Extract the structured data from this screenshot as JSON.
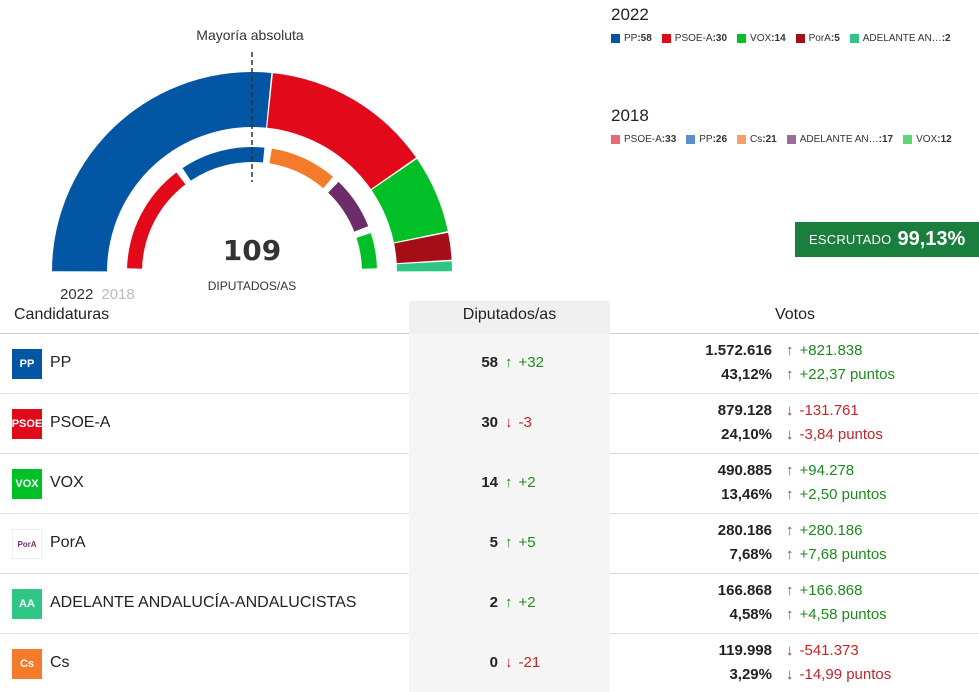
{
  "chart_data": {
    "type": "hemicycle",
    "threshold_label": "Mayoría absoluta",
    "total_seats": "109",
    "total_label": "DIPUTADOS/AS",
    "outer_series": {
      "year": "2022",
      "parties": [
        {
          "name": "PP",
          "seats": 58,
          "color": "#0256a3"
        },
        {
          "name": "PSOE-A",
          "seats": 30,
          "color": "#e20a1a"
        },
        {
          "name": "VOX",
          "seats": 14,
          "color": "#00bf27"
        },
        {
          "name": "PorA",
          "seats": 5,
          "color": "#a50d17"
        },
        {
          "name": "ADELANTE AN…",
          "seats": 2,
          "color": "#2fc685"
        }
      ]
    },
    "inner_series": {
      "year": "2018",
      "parties": [
        {
          "name": "PSOE-A",
          "seats": 33,
          "color": "#e20a1a"
        },
        {
          "name": "PP",
          "seats": 26,
          "color": "#0256a3"
        },
        {
          "name": "Cs",
          "seats": 21,
          "color": "#f47b2a"
        },
        {
          "name": "ADELANTE AN…",
          "seats": 17,
          "color": "#6d2d6b"
        },
        {
          "name": "VOX",
          "seats": 12,
          "color": "#00bf27"
        }
      ]
    }
  },
  "legend_2022": {
    "year": "2022",
    "items": [
      {
        "name": "PP",
        "seats": ":58",
        "color": "#0256a3"
      },
      {
        "name": "PSOE-A",
        "seats": ":30",
        "color": "#e20a1a"
      },
      {
        "name": "VOX",
        "seats": ":14",
        "color": "#00bf27"
      },
      {
        "name": "PorA",
        "seats": ":5",
        "color": "#a50d17"
      },
      {
        "name": "ADELANTE AN… ",
        "seats": ":2",
        "color": "#2fc685"
      }
    ]
  },
  "legend_2018": {
    "year": "2018",
    "items": [
      {
        "name": "PSOE-A",
        "seats": ":33",
        "color": "#e86a75"
      },
      {
        "name": "PP",
        "seats": ":26",
        "color": "#5a8fcc"
      },
      {
        "name": "Cs",
        "seats": ":21",
        "color": "#f5a06a"
      },
      {
        "name": "ADELANTE AN… ",
        "seats": ":17",
        "color": "#9a6d99"
      },
      {
        "name": "VOX",
        "seats": ":12",
        "color": "#5fd472"
      }
    ]
  },
  "escrutado": {
    "label": "ESCRUTADO",
    "value": "99,13%"
  },
  "year_tabs": {
    "active": "2022",
    "inactive": "2018"
  },
  "table": {
    "headers": {
      "party": "Candidaturas",
      "seats": "Diputados/as",
      "votes": "Votos"
    },
    "rows": [
      {
        "logo": "PP",
        "logo_color": "#0256a3",
        "name": "PP",
        "seats": "58",
        "seats_diff": "+32",
        "seats_dir": "up",
        "votes": "1.572.616",
        "votes_diff": "+821.838",
        "votes_dir": "up",
        "pct": "43,12%",
        "pct_diff": "+22,37 puntos",
        "pct_dir": "up"
      },
      {
        "logo": "PSOE",
        "logo_color": "#e20a1a",
        "name": "PSOE-A",
        "seats": "30",
        "seats_diff": "-3",
        "seats_dir": "down",
        "votes": "879.128",
        "votes_diff": "-131.761",
        "votes_dir": "down",
        "pct": "24,10%",
        "pct_diff": "-3,84 puntos",
        "pct_dir": "down"
      },
      {
        "logo": "VOX",
        "logo_color": "#00bf27",
        "name": "VOX",
        "seats": "14",
        "seats_diff": "+2",
        "seats_dir": "up",
        "votes": "490.885",
        "votes_diff": "+94.278",
        "votes_dir": "up",
        "pct": "13,46%",
        "pct_diff": "+2,50 puntos",
        "pct_dir": "up"
      },
      {
        "logo": "PorA",
        "logo_color": "#ffffff",
        "name": "PorA",
        "seats": "5",
        "seats_diff": "+5",
        "seats_dir": "up",
        "votes": "280.186",
        "votes_diff": "+280.186",
        "votes_dir": "up",
        "pct": "7,68%",
        "pct_diff": "+7,68 puntos",
        "pct_dir": "up"
      },
      {
        "logo": "AA",
        "logo_color": "#2fc685",
        "name": "ADELANTE ANDALUCÍA-ANDALUCISTAS",
        "seats": "2",
        "seats_diff": "+2",
        "seats_dir": "up",
        "votes": "166.868",
        "votes_diff": "+166.868",
        "votes_dir": "up",
        "pct": "4,58%",
        "pct_diff": "+4,58 puntos",
        "pct_dir": "up"
      },
      {
        "logo": "Cs",
        "logo_color": "#f47b2a",
        "name": "Cs",
        "seats": "0",
        "seats_diff": "-21",
        "seats_dir": "down",
        "votes": "119.998",
        "votes_diff": "-541.373",
        "votes_dir": "down",
        "pct": "3,29%",
        "pct_diff": "-14,99 puntos",
        "pct_dir": "down"
      }
    ]
  }
}
